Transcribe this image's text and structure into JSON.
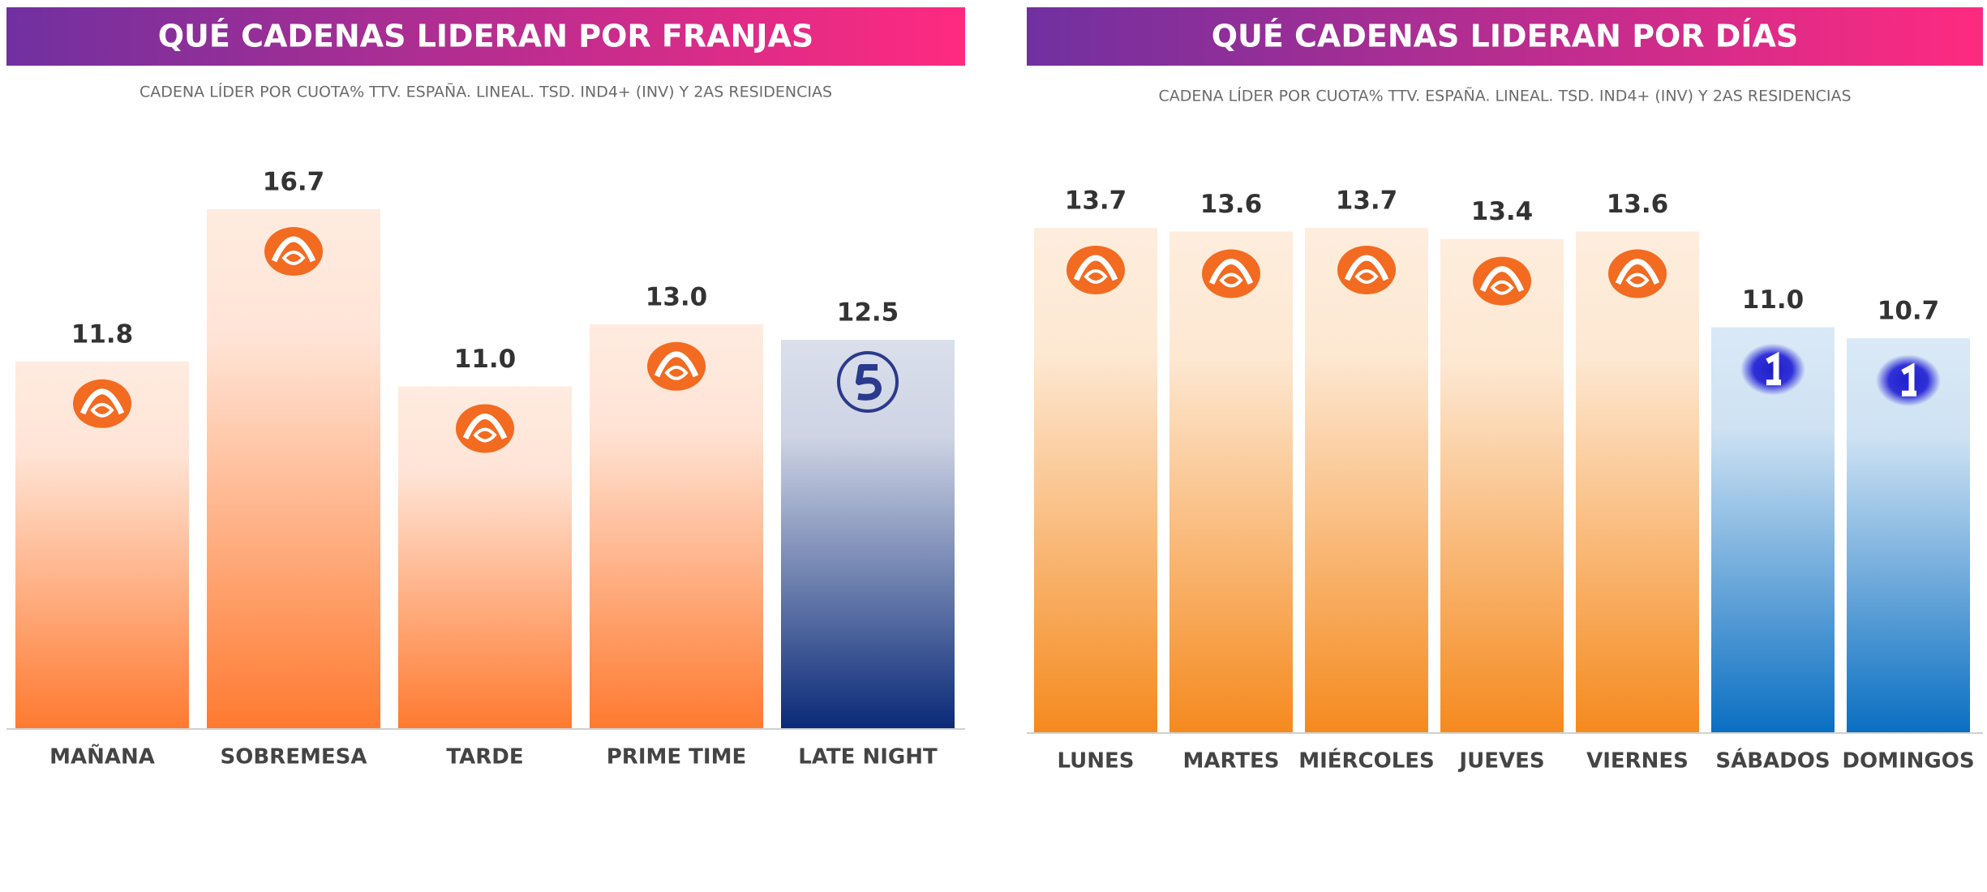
{
  "chart_data": [
    {
      "type": "bar",
      "title": "QUÉ CADENAS LIDERAN POR FRANJAS",
      "subtitle": "CADENA LÍDER POR CUOTA% TTV. ESPAÑA. LINEAL. TSD. IND4+ (INV) Y 2AS RESIDENCIAS",
      "categories": [
        "MAÑANA",
        "SOBREMESA",
        "TARDE",
        "PRIME TIME",
        "LATE NIGHT"
      ],
      "values": [
        11.8,
        16.7,
        11.0,
        13.0,
        12.5
      ],
      "value_labels": [
        "11.8",
        "16.7",
        "11.0",
        "13.0",
        "12.5"
      ],
      "colors": [
        "#ff7a30",
        "#ff7a30",
        "#ff7a30",
        "#ff7a30",
        "#0a2a78"
      ]
    },
    {
      "type": "bar",
      "title": "QUÉ CADENAS LIDERAN POR DÍAS",
      "subtitle": "CADENA LÍDER POR CUOTA% TTV. ESPAÑA. LINEAL. TSD. IND4+ (INV) Y 2AS RESIDENCIAS",
      "categories": [
        "LUNES",
        "MARTES",
        "MIÉRCOLES",
        "JUEVES",
        "VIERNES",
        "SÁBADOS",
        "DOMINGOS"
      ],
      "values": [
        13.7,
        13.6,
        13.7,
        13.4,
        13.6,
        11.0,
        10.7
      ],
      "value_labels": [
        "13.7",
        "13.6",
        "13.7",
        "13.4",
        "13.6",
        "11.0",
        "10.7"
      ],
      "colors": [
        "#f58a1e",
        "#f58a1e",
        "#f58a1e",
        "#f58a1e",
        "#f58a1e",
        "#0a6fc2",
        "#0a6fc2"
      ]
    }
  ]
}
